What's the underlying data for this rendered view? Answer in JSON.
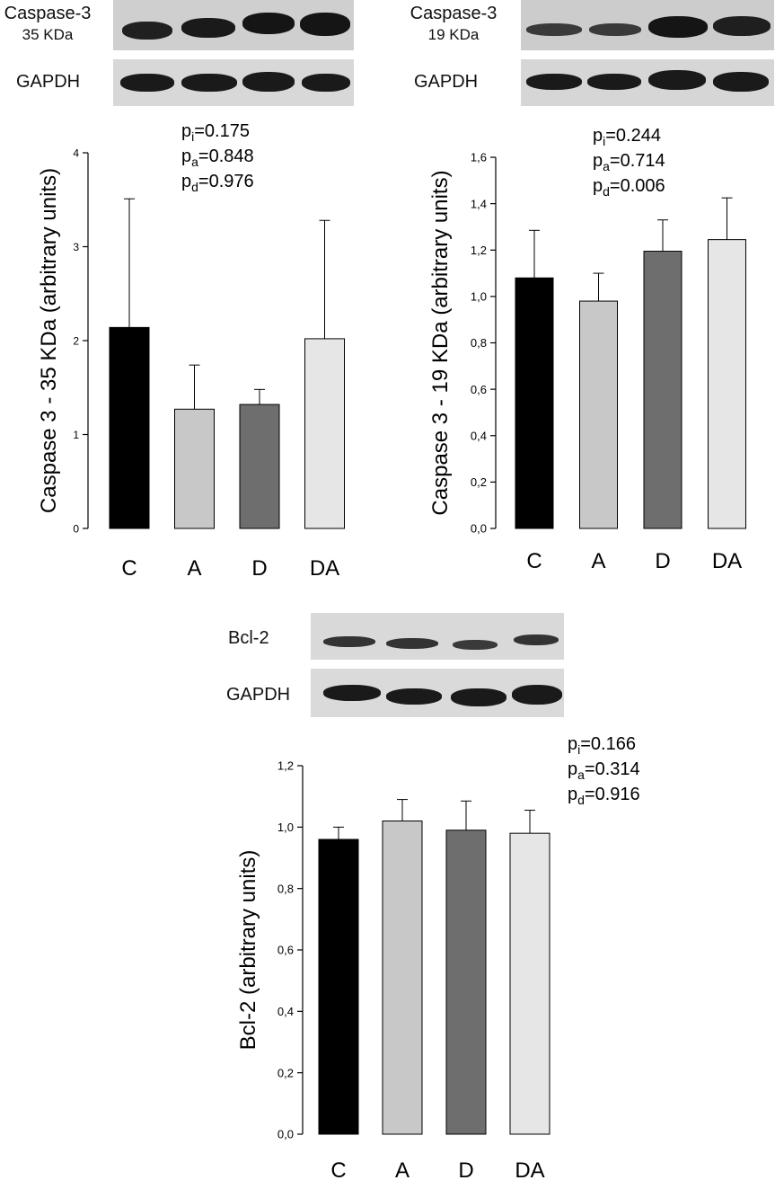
{
  "blots": {
    "casp35": {
      "label_line1": "Caspase-3",
      "label_line2": "35 KDa",
      "gapdh_label": "GAPDH"
    },
    "casp19": {
      "label_line1": "Caspase-3",
      "label_line2": "19 KDa",
      "gapdh_label": "GAPDH"
    },
    "bcl2": {
      "label": "Bcl-2",
      "gapdh_label": "GAPDH"
    }
  },
  "chart_data": [
    {
      "type": "bar",
      "categories": [
        "C",
        "A",
        "D",
        "DA"
      ],
      "values": [
        2.14,
        1.27,
        1.32,
        2.02
      ],
      "errors": [
        1.37,
        0.47,
        0.16,
        1.26
      ],
      "colors": [
        "#000000",
        "#c8c8c8",
        "#6e6e6e",
        "#e6e6e6"
      ],
      "ylabel": "Caspase 3 - 35 KDa (arbitrary units)",
      "ylim": [
        0,
        4
      ],
      "yticks": [
        0,
        1,
        2,
        3,
        4
      ],
      "ytick_labels": [
        "0",
        "1",
        "2",
        "3",
        "4"
      ],
      "stats": [
        {
          "p": "p",
          "sub": "i",
          "val": "=0.175"
        },
        {
          "p": "p",
          "sub": "a",
          "val": "=0.848"
        },
        {
          "p": "p",
          "sub": "d",
          "val": "=0.976"
        }
      ]
    },
    {
      "type": "bar",
      "categories": [
        "C",
        "A",
        "D",
        "DA"
      ],
      "values": [
        1.08,
        0.98,
        1.195,
        1.245
      ],
      "errors": [
        0.205,
        0.12,
        0.135,
        0.18
      ],
      "colors": [
        "#000000",
        "#c8c8c8",
        "#6e6e6e",
        "#e6e6e6"
      ],
      "ylabel": "Caspase 3 - 19 KDa (arbitrary units)",
      "ylim": [
        0,
        1.6
      ],
      "yticks": [
        0,
        0.2,
        0.4,
        0.6,
        0.8,
        1.0,
        1.2,
        1.4,
        1.6
      ],
      "ytick_labels": [
        "0,0",
        "0,2",
        "0,4",
        "0,6",
        "0,8",
        "1,0",
        "1,2",
        "1,4",
        "1,6"
      ],
      "stats": [
        {
          "p": "p",
          "sub": "i",
          "val": "=0.244"
        },
        {
          "p": "p",
          "sub": "a",
          "val": "=0.714"
        },
        {
          "p": "p",
          "sub": "d",
          "val": "=0.006"
        }
      ]
    },
    {
      "type": "bar",
      "categories": [
        "C",
        "A",
        "D",
        "DA"
      ],
      "values": [
        0.96,
        1.02,
        0.99,
        0.98
      ],
      "errors": [
        0.04,
        0.07,
        0.095,
        0.075
      ],
      "colors": [
        "#000000",
        "#c8c8c8",
        "#6e6e6e",
        "#e6e6e6"
      ],
      "ylabel": "Bcl-2 (arbitrary units)",
      "ylim": [
        0,
        1.2
      ],
      "yticks": [
        0,
        0.2,
        0.4,
        0.6,
        0.8,
        1.0,
        1.2
      ],
      "ytick_labels": [
        "0,0",
        "0,2",
        "0,4",
        "0,6",
        "0,8",
        "1,0",
        "1,2"
      ],
      "stats": [
        {
          "p": "p",
          "sub": "i",
          "val": "=0.166"
        },
        {
          "p": "p",
          "sub": "a",
          "val": "=0.314"
        },
        {
          "p": "p",
          "sub": "d",
          "val": "=0.916"
        }
      ]
    }
  ]
}
